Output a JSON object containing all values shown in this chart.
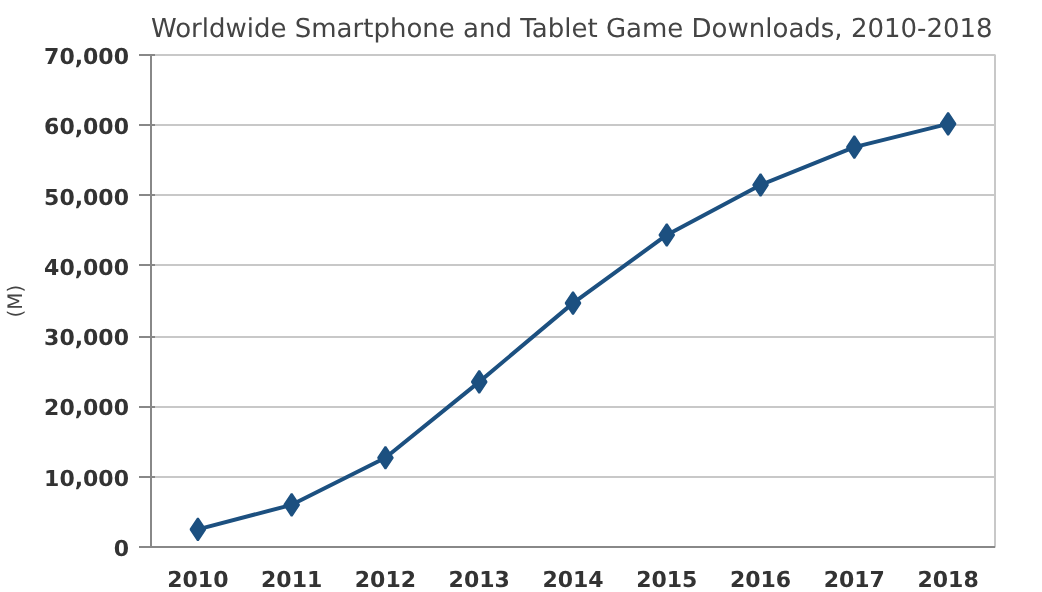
{
  "chart_data": {
    "type": "line",
    "title": "Worldwide Smartphone and Tablet Game Downloads, 2010-2018",
    "ylabel": "(M)",
    "categories": [
      "2010",
      "2011",
      "2012",
      "2013",
      "2014",
      "2015",
      "2016",
      "2017",
      "2018"
    ],
    "series": [
      {
        "color": "#1c5080",
        "values": [
          2500,
          6000,
          12700,
          23500,
          34700,
          44400,
          51500,
          56900,
          60200
        ]
      }
    ],
    "ylim": [
      0,
      70000
    ],
    "yticks": [
      {
        "value": 0,
        "label": "0"
      },
      {
        "value": 10000,
        "label": "10,000"
      },
      {
        "value": 20000,
        "label": "20,000"
      },
      {
        "value": 30000,
        "label": "30,000"
      },
      {
        "value": 40000,
        "label": "40,000"
      },
      {
        "value": 50000,
        "label": "50,000"
      },
      {
        "value": 60000,
        "label": "60,000"
      },
      {
        "value": 70000,
        "label": "70,000"
      }
    ],
    "grid": "y",
    "marker": "diamond",
    "line_style": "solid"
  }
}
